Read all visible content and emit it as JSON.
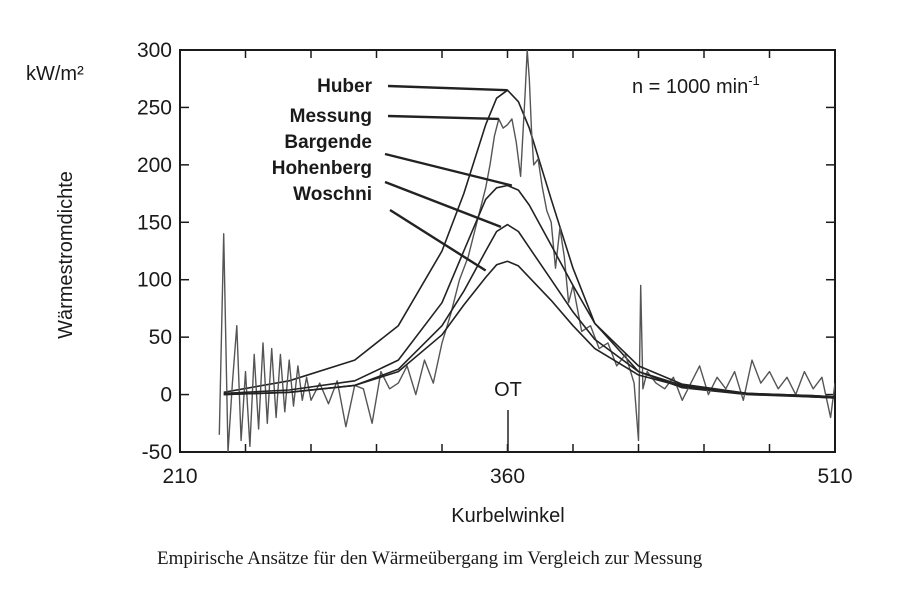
{
  "chart_data": {
    "type": "line",
    "title": "",
    "xlabel": "Kurbelwinkel",
    "ylabel": "Wärmestromdichte",
    "yunit": "kW/m²",
    "xlim": [
      210,
      510
    ],
    "ylim": [
      -50,
      300
    ],
    "xticks": [
      210,
      360,
      510
    ],
    "yticks": [
      -50,
      0,
      50,
      100,
      150,
      200,
      250,
      300
    ],
    "grid": false,
    "annotations": {
      "speed": "n = 1000 min",
      "speed_sup": "-1",
      "tdc": "OT",
      "tdc_x": 360
    },
    "caption": "Empirische Ansätze für den Wärmeübergang im Vergleich zur Messung",
    "series": [
      {
        "name": "Huber",
        "color": "#222222",
        "x": [
          230,
          260,
          290,
          310,
          330,
          340,
          350,
          355,
          360,
          365,
          370,
          380,
          390,
          400,
          420,
          440,
          470,
          500,
          510
        ],
        "y": [
          2,
          12,
          30,
          60,
          125,
          175,
          235,
          258,
          265,
          255,
          232,
          170,
          110,
          62,
          20,
          6,
          0,
          -2,
          -3
        ]
      },
      {
        "name": "Messung",
        "color": "#555555",
        "x": [
          228,
          230,
          232,
          234,
          236,
          238,
          240,
          242,
          244,
          246,
          248,
          250,
          252,
          254,
          256,
          258,
          260,
          262,
          264,
          266,
          268,
          270,
          274,
          278,
          282,
          286,
          290,
          294,
          298,
          302,
          306,
          310,
          314,
          318,
          322,
          326,
          330,
          334,
          338,
          342,
          346,
          350,
          352,
          354,
          356,
          358,
          360,
          362,
          364,
          366,
          368,
          369,
          370,
          371,
          372,
          374,
          376,
          378,
          380,
          382,
          384,
          386,
          388,
          390,
          394,
          398,
          402,
          406,
          410,
          414,
          418,
          420,
          421,
          422,
          424,
          428,
          432,
          436,
          440,
          444,
          448,
          452,
          456,
          460,
          464,
          468,
          472,
          476,
          480,
          484,
          488,
          492,
          496,
          500,
          504,
          508,
          510
        ],
        "y": [
          -35,
          140,
          -50,
          10,
          60,
          -40,
          20,
          -45,
          35,
          -30,
          45,
          -25,
          40,
          -20,
          35,
          -15,
          30,
          -10,
          25,
          -5,
          15,
          -5,
          10,
          -8,
          12,
          -28,
          8,
          5,
          -25,
          20,
          5,
          10,
          25,
          0,
          30,
          10,
          45,
          70,
          100,
          120,
          150,
          180,
          200,
          225,
          240,
          232,
          235,
          240,
          220,
          190,
          260,
          300,
          275,
          230,
          200,
          205,
          180,
          160,
          150,
          110,
          145,
          120,
          80,
          95,
          55,
          60,
          40,
          45,
          25,
          35,
          10,
          -40,
          95,
          5,
          20,
          10,
          5,
          15,
          -5,
          10,
          25,
          0,
          15,
          5,
          20,
          -5,
          30,
          10,
          20,
          5,
          15,
          0,
          20,
          5,
          15,
          -20,
          10
        ]
      },
      {
        "name": "Bargende",
        "color": "#222222",
        "x": [
          230,
          260,
          290,
          310,
          330,
          340,
          350,
          355,
          360,
          365,
          370,
          380,
          390,
          400,
          420,
          440,
          470,
          500,
          510
        ],
        "y": [
          1,
          4,
          12,
          30,
          80,
          125,
          170,
          180,
          182,
          178,
          165,
          130,
          95,
          62,
          25,
          9,
          1,
          -2,
          -3
        ]
      },
      {
        "name": "Hohenberg",
        "color": "#222222",
        "x": [
          230,
          260,
          290,
          310,
          330,
          340,
          350,
          355,
          360,
          365,
          370,
          380,
          390,
          400,
          420,
          440,
          470,
          500,
          510
        ],
        "y": [
          0,
          2,
          8,
          22,
          60,
          90,
          125,
          142,
          148,
          142,
          128,
          100,
          72,
          48,
          20,
          8,
          1,
          -1,
          -2
        ]
      },
      {
        "name": "Woschni",
        "color": "#222222",
        "x": [
          230,
          260,
          290,
          310,
          330,
          340,
          350,
          355,
          360,
          365,
          370,
          380,
          390,
          400,
          420,
          440,
          470,
          500,
          510
        ],
        "y": [
          0,
          2,
          8,
          20,
          52,
          78,
          102,
          113,
          116,
          112,
          102,
          82,
          60,
          40,
          17,
          7,
          1,
          -1,
          -2
        ]
      }
    ]
  }
}
